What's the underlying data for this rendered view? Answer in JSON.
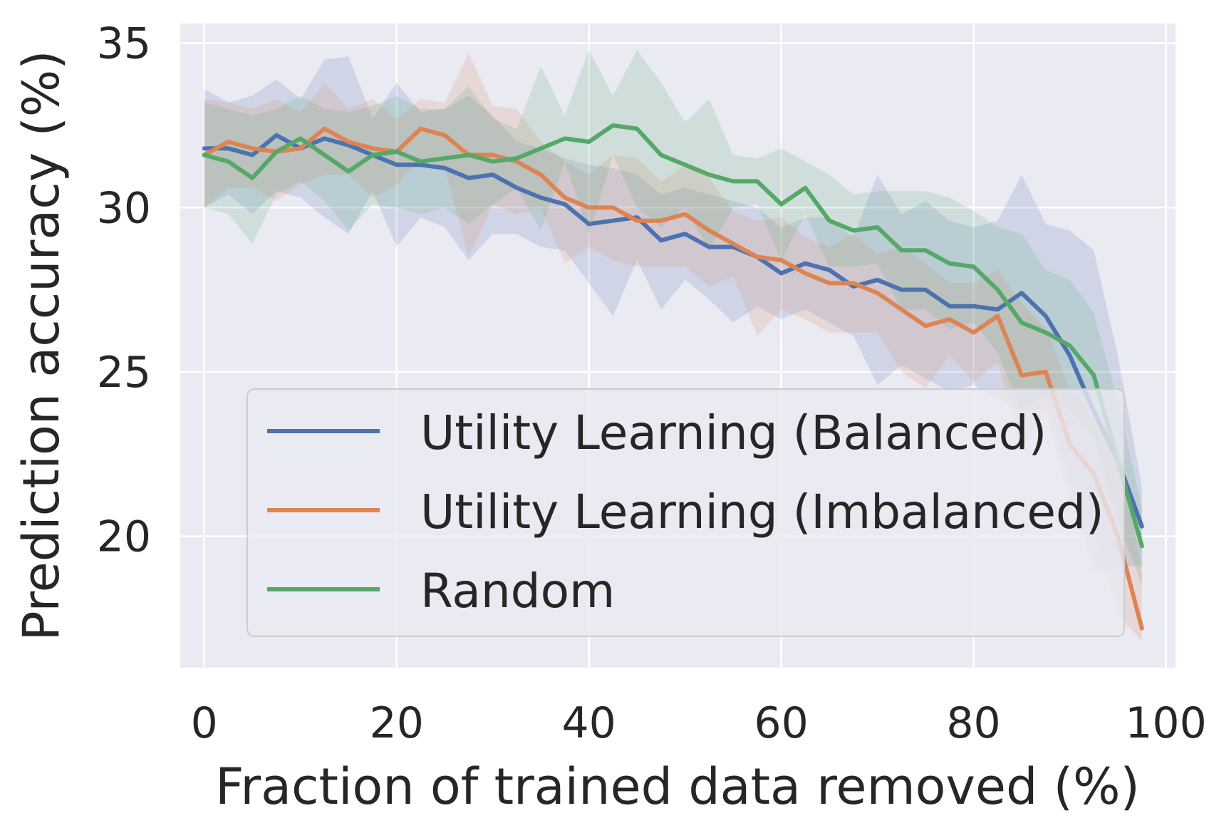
{
  "chart_data": {
    "type": "line",
    "title": "",
    "xlabel": "Fraction of trained data removed (%)",
    "ylabel": "Prediction accuracy (%)",
    "xlim": [
      -2.5,
      101
    ],
    "ylim": [
      16,
      35.6
    ],
    "xticks": [
      0,
      20,
      40,
      60,
      80,
      100
    ],
    "yticks": [
      20,
      25,
      30,
      35
    ],
    "grid": true,
    "legend_position": "lower-left",
    "x": [
      0,
      2.5,
      5,
      7.5,
      10,
      12.5,
      15,
      17.5,
      20,
      22.5,
      25,
      27.5,
      30,
      32.5,
      35,
      37.5,
      40,
      42.5,
      45,
      47.5,
      50,
      52.5,
      55,
      57.5,
      60,
      62.5,
      65,
      67.5,
      70,
      72.5,
      75,
      77.5,
      80,
      82.5,
      85,
      87.5,
      90,
      92.5,
      95,
      97.5
    ],
    "series": [
      {
        "name": "Utility Learning (Balanced)",
        "color": "#4c72b0",
        "values": [
          31.8,
          31.8,
          31.6,
          32.2,
          31.8,
          32.1,
          31.9,
          31.6,
          31.3,
          31.3,
          31.2,
          30.9,
          31.0,
          30.6,
          30.3,
          30.1,
          29.5,
          29.6,
          29.7,
          29.0,
          29.2,
          28.8,
          28.8,
          28.5,
          28.0,
          28.3,
          28.1,
          27.6,
          27.8,
          27.5,
          27.5,
          27.0,
          27.0,
          26.9,
          27.4,
          26.7,
          25.5,
          23.8,
          22.3,
          20.3
        ],
        "upper": [
          33.6,
          33.2,
          33.4,
          33.9,
          33.3,
          34.5,
          34.6,
          32.7,
          33.8,
          32.9,
          33.0,
          33.4,
          32.8,
          32.0,
          31.8,
          31.5,
          31.3,
          31.2,
          31.0,
          30.4,
          30.6,
          30.4,
          30.2,
          30.0,
          29.4,
          29.7,
          29.7,
          29.1,
          31.0,
          29.8,
          30.2,
          29.6,
          29.4,
          29.6,
          31.0,
          29.5,
          29.3,
          28.7,
          25.5,
          21.5
        ],
        "lower": [
          30.0,
          30.4,
          29.8,
          30.5,
          30.3,
          29.7,
          29.2,
          30.5,
          28.8,
          29.7,
          29.4,
          28.4,
          29.2,
          29.2,
          28.8,
          28.7,
          27.7,
          26.7,
          28.4,
          26.9,
          27.8,
          27.2,
          26.5,
          27.0,
          26.6,
          26.9,
          26.5,
          26.1,
          24.6,
          25.2,
          24.8,
          24.4,
          24.6,
          24.2,
          23.8,
          23.9,
          21.7,
          18.9,
          19.1,
          19.1
        ]
      },
      {
        "name": "Utility Learning (Imbalanced)",
        "color": "#dd8452",
        "values": [
          31.6,
          32.0,
          31.8,
          31.7,
          31.8,
          32.4,
          32.0,
          31.8,
          31.7,
          32.4,
          32.2,
          31.6,
          31.6,
          31.4,
          31.0,
          30.3,
          30.0,
          30.0,
          29.6,
          29.6,
          29.8,
          29.3,
          28.9,
          28.5,
          28.4,
          28.0,
          27.7,
          27.7,
          27.4,
          26.9,
          26.4,
          26.6,
          26.2,
          26.7,
          24.9,
          25.0,
          22.8,
          21.9,
          20.0,
          17.2
        ],
        "upper": [
          33.3,
          33.2,
          33.0,
          33.3,
          32.9,
          33.8,
          33.0,
          33.3,
          32.7,
          33.3,
          33.2,
          34.7,
          33.1,
          33.0,
          32.0,
          31.4,
          31.0,
          31.6,
          31.5,
          30.8,
          31.3,
          30.9,
          29.9,
          29.6,
          29.7,
          29.1,
          28.8,
          29.2,
          28.6,
          28.8,
          28.3,
          27.7,
          27.7,
          28.1,
          27.1,
          26.3,
          24.5,
          23.6,
          22.9,
          18.9
        ],
        "lower": [
          30.0,
          30.6,
          30.6,
          30.2,
          30.7,
          31.0,
          31.0,
          30.3,
          30.7,
          31.5,
          31.2,
          28.5,
          30.1,
          29.8,
          30.0,
          28.3,
          28.8,
          28.4,
          28.2,
          28.2,
          28.2,
          27.6,
          27.9,
          26.1,
          26.9,
          26.6,
          26.2,
          26.2,
          26.2,
          25.0,
          24.5,
          25.5,
          24.7,
          25.3,
          22.7,
          23.7,
          21.1,
          20.2,
          17.6,
          16.8
        ]
      },
      {
        "name": "Random",
        "color": "#55a868",
        "values": [
          31.6,
          31.4,
          30.9,
          31.7,
          32.1,
          31.6,
          31.1,
          31.6,
          31.7,
          31.4,
          31.5,
          31.6,
          31.4,
          31.5,
          31.8,
          32.1,
          32.0,
          32.5,
          32.4,
          31.6,
          31.3,
          31.0,
          30.8,
          30.8,
          30.1,
          30.6,
          29.6,
          29.3,
          29.4,
          28.7,
          28.7,
          28.3,
          28.2,
          27.5,
          26.5,
          26.2,
          25.8,
          24.9,
          22.3,
          19.7
        ],
        "upper": [
          33.2,
          33.0,
          32.8,
          33.0,
          33.4,
          33.0,
          32.9,
          33.1,
          33.4,
          33.0,
          33.0,
          33.7,
          32.7,
          32.4,
          34.3,
          32.8,
          34.8,
          33.4,
          34.8,
          33.8,
          32.6,
          33.3,
          31.6,
          31.5,
          31.8,
          31.4,
          31.0,
          30.4,
          30.5,
          30.5,
          30.5,
          30.3,
          29.9,
          29.4,
          29.2,
          28.1,
          27.8,
          26.8,
          24.1,
          20.9
        ],
        "lower": [
          30.0,
          29.8,
          28.9,
          30.4,
          30.8,
          30.2,
          29.3,
          30.1,
          30.0,
          29.8,
          30.0,
          29.5,
          30.1,
          30.6,
          29.3,
          31.4,
          29.2,
          31.6,
          30.0,
          29.4,
          30.0,
          28.7,
          30.0,
          30.1,
          28.4,
          29.8,
          28.2,
          28.2,
          28.3,
          26.9,
          26.9,
          26.3,
          26.5,
          25.6,
          23.8,
          24.3,
          23.8,
          23.0,
          20.5,
          18.5
        ]
      }
    ]
  }
}
